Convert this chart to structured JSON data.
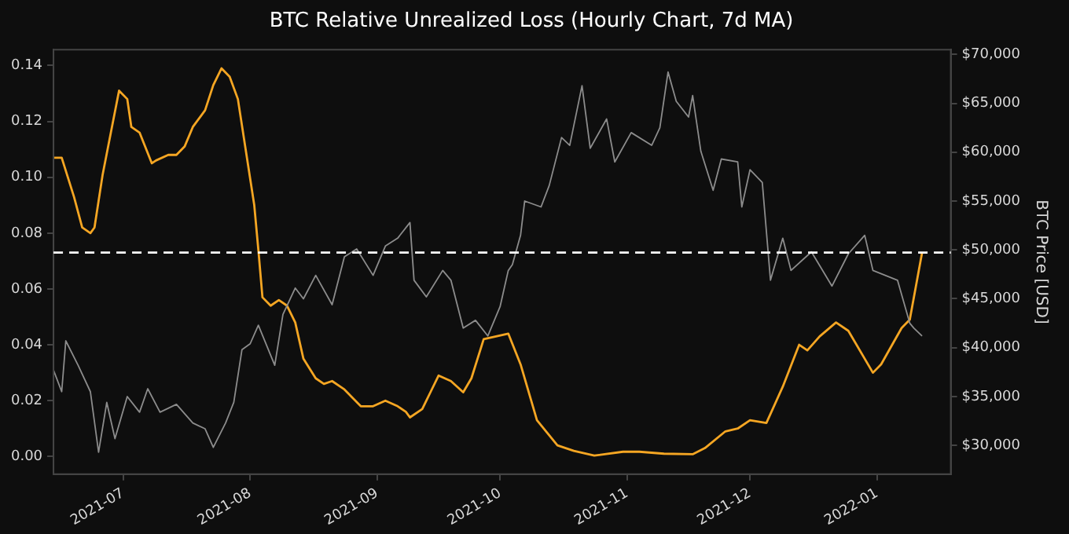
{
  "chart_data": {
    "type": "line",
    "title": "BTC Relative Unrealized Loss (Hourly Chart, 7d MA)",
    "y2label": "BTC Price [USD]",
    "xlim": [
      "2021-06-14",
      "2022-01-19"
    ],
    "xticks": [
      {
        "value": "2021-07-01",
        "label": "2021-07"
      },
      {
        "value": "2021-08-01",
        "label": "2021-08"
      },
      {
        "value": "2021-09-01",
        "label": "2021-09"
      },
      {
        "value": "2021-10-01",
        "label": "2021-10"
      },
      {
        "value": "2021-11-01",
        "label": "2021-11"
      },
      {
        "value": "2021-12-01",
        "label": "2021-12"
      },
      {
        "value": "2022-01-01",
        "label": "2022-01"
      }
    ],
    "ylim": [
      -0.0063,
      0.1457
    ],
    "yticks": [
      {
        "value": 0,
        "label": "0.00"
      },
      {
        "value": 0.02,
        "label": "0.02"
      },
      {
        "value": 0.04,
        "label": "0.04"
      },
      {
        "value": 0.06,
        "label": "0.06"
      },
      {
        "value": 0.08,
        "label": "0.08"
      },
      {
        "value": 0.1,
        "label": "0.10"
      },
      {
        "value": 0.12,
        "label": "0.12"
      },
      {
        "value": 0.14,
        "label": "0.14"
      }
    ],
    "y2lim": [
      27070,
      70490
    ],
    "y2ticks": [
      {
        "value": 30000,
        "label": "$30,000"
      },
      {
        "value": 35000,
        "label": "$35,000"
      },
      {
        "value": 40000,
        "label": "$40,000"
      },
      {
        "value": 45000,
        "label": "$45,000"
      },
      {
        "value": 50000,
        "label": "$50,000"
      },
      {
        "value": 55000,
        "label": "$55,000"
      },
      {
        "value": 60000,
        "label": "$60,000"
      },
      {
        "value": 65000,
        "label": "$65,000"
      },
      {
        "value": 70000,
        "label": "$70,000"
      }
    ],
    "grid": false,
    "legend": false,
    "marker": "none",
    "line_style": "solid",
    "ref_lines": [
      {
        "axis": "y",
        "value": 0.073,
        "color": "#ffffff",
        "line_style": "dashed"
      }
    ],
    "series": [
      {
        "axis": "y2",
        "color": "#8c8c8c",
        "x": [
          "2021-06-14",
          "2021-06-16",
          "2021-06-17",
          "2021-06-20",
          "2021-06-23",
          "2021-06-25",
          "2021-06-27",
          "2021-06-29",
          "2021-07-02",
          "2021-07-05",
          "2021-07-07",
          "2021-07-10",
          "2021-07-14",
          "2021-07-18",
          "2021-07-21",
          "2021-07-23",
          "2021-07-26",
          "2021-07-28",
          "2021-07-30",
          "2021-08-01",
          "2021-08-03",
          "2021-08-07",
          "2021-08-09",
          "2021-08-12",
          "2021-08-14",
          "2021-08-17",
          "2021-08-21",
          "2021-08-24",
          "2021-08-27",
          "2021-08-31",
          "2021-09-03",
          "2021-09-06",
          "2021-09-09",
          "2021-09-10",
          "2021-09-13",
          "2021-09-17",
          "2021-09-19",
          "2021-09-22",
          "2021-09-25",
          "2021-09-28",
          "2021-10-01",
          "2021-10-03",
          "2021-10-04",
          "2021-10-06",
          "2021-10-07",
          "2021-10-11",
          "2021-10-13",
          "2021-10-16",
          "2021-10-18",
          "2021-10-21",
          "2021-10-23",
          "2021-10-27",
          "2021-10-29",
          "2021-11-02",
          "2021-11-07",
          "2021-11-09",
          "2021-11-11",
          "2021-11-13",
          "2021-11-16",
          "2021-11-17",
          "2021-11-19",
          "2021-11-22",
          "2021-11-24",
          "2021-11-28",
          "2021-11-29",
          "2021-12-01",
          "2021-12-04",
          "2021-12-06",
          "2021-12-09",
          "2021-12-11",
          "2021-12-16",
          "2021-12-21",
          "2021-12-25",
          "2021-12-29",
          "2021-12-31",
          "2022-01-06",
          "2022-01-09",
          "2022-01-10",
          "2022-01-12"
        ],
        "values": [
          37700,
          35500,
          40700,
          38200,
          35500,
          29300,
          34400,
          30700,
          35000,
          33400,
          35800,
          33400,
          34200,
          32300,
          31700,
          29800,
          32300,
          34400,
          39800,
          40400,
          42300,
          38200,
          43400,
          46100,
          45000,
          47400,
          44400,
          49300,
          50100,
          47400,
          50400,
          51200,
          52800,
          46900,
          45200,
          47900,
          46900,
          42000,
          42800,
          41200,
          44200,
          47900,
          48500,
          51500,
          55000,
          54400,
          56600,
          61500,
          60700,
          66800,
          60400,
          63400,
          59000,
          62000,
          60700,
          62500,
          68200,
          65200,
          63600,
          65800,
          60100,
          56100,
          59300,
          59000,
          54400,
          58200,
          56900,
          46900,
          51200,
          47900,
          49800,
          46300,
          49600,
          51500,
          47900,
          46900,
          42500,
          42000,
          41200
        ]
      },
      {
        "color": "#f5a623",
        "x": [
          "2021-06-14",
          "2021-06-16",
          "2021-06-19",
          "2021-06-21",
          "2021-06-23",
          "2021-06-24",
          "2021-06-26",
          "2021-06-28",
          "2021-06-30",
          "2021-07-02",
          "2021-07-03",
          "2021-07-05",
          "2021-07-08",
          "2021-07-09",
          "2021-07-12",
          "2021-07-14",
          "2021-07-16",
          "2021-07-18",
          "2021-07-21",
          "2021-07-23",
          "2021-07-25",
          "2021-07-27",
          "2021-07-29",
          "2021-07-31",
          "2021-08-02",
          "2021-08-03",
          "2021-08-04",
          "2021-08-06",
          "2021-08-08",
          "2021-08-10",
          "2021-08-12",
          "2021-08-14",
          "2021-08-17",
          "2021-08-19",
          "2021-08-21",
          "2021-08-24",
          "2021-08-28",
          "2021-08-31",
          "2021-09-03",
          "2021-09-06",
          "2021-09-08",
          "2021-09-09",
          "2021-09-12",
          "2021-09-14",
          "2021-09-16",
          "2021-09-19",
          "2021-09-22",
          "2021-09-24",
          "2021-09-27",
          "2021-09-30",
          "2021-10-03",
          "2021-10-06",
          "2021-10-10",
          "2021-10-15",
          "2021-10-19",
          "2021-10-24",
          "2021-10-31",
          "2021-11-04",
          "2021-11-10",
          "2021-11-17",
          "2021-11-20",
          "2021-11-25",
          "2021-11-28",
          "2021-12-01",
          "2021-12-05",
          "2021-12-09",
          "2021-12-13",
          "2021-12-15",
          "2021-12-18",
          "2021-12-22",
          "2021-12-25",
          "2021-12-31",
          "2022-01-02",
          "2022-01-07",
          "2022-01-09",
          "2022-01-12"
        ],
        "values": [
          0.107,
          0.107,
          0.093,
          0.082,
          0.08,
          0.082,
          0.101,
          0.116,
          0.131,
          0.128,
          0.118,
          0.116,
          0.105,
          0.106,
          0.108,
          0.108,
          0.111,
          0.118,
          0.124,
          0.133,
          0.139,
          0.136,
          0.128,
          0.109,
          0.09,
          0.074,
          0.057,
          0.054,
          0.056,
          0.054,
          0.048,
          0.035,
          0.028,
          0.026,
          0.027,
          0.024,
          0.018,
          0.018,
          0.02,
          0.018,
          0.016,
          0.014,
          0.017,
          0.023,
          0.029,
          0.027,
          0.023,
          0.028,
          0.042,
          0.043,
          0.044,
          0.033,
          0.013,
          0.004,
          0.002,
          0.0003,
          0.0017,
          0.0017,
          0.001,
          0.0008,
          0.003,
          0.009,
          0.01,
          0.013,
          0.012,
          0.025,
          0.04,
          0.038,
          0.043,
          0.048,
          0.045,
          0.03,
          0.033,
          0.046,
          0.049,
          0.073
        ]
      }
    ]
  }
}
